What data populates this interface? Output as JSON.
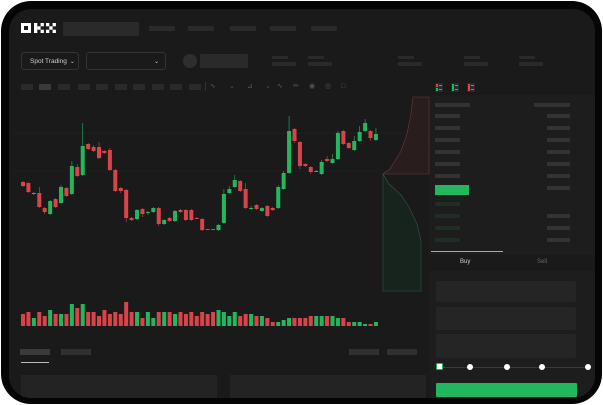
{
  "header": {
    "logo": "OKX"
  },
  "controls": {
    "market_select": "Spot Trading",
    "pair_select": ""
  },
  "trade": {
    "tabs": [
      "Buy",
      "Sell"
    ],
    "active_tab": "Buy",
    "slider_percent": 0,
    "button_color": "#22b65f"
  },
  "colors": {
    "up": "#22b65f",
    "down": "#d9444a",
    "background": "#1a1a1a"
  },
  "chart": {
    "candles": [
      [
        59,
        55,
        60,
        54
      ],
      [
        58,
        49,
        59,
        48
      ],
      [
        47,
        48,
        49,
        46
      ],
      [
        48,
        34,
        54,
        33
      ],
      [
        33,
        29,
        34,
        27
      ],
      [
        27,
        40,
        41,
        26
      ],
      [
        42,
        34,
        43,
        33
      ],
      [
        38,
        54,
        56,
        37
      ],
      [
        53,
        45,
        54,
        44
      ],
      [
        47,
        75,
        80,
        46
      ],
      [
        74,
        65,
        77,
        64
      ],
      [
        66,
        95,
        118,
        65
      ],
      [
        97,
        92,
        98,
        91
      ],
      [
        94,
        90,
        96,
        89
      ],
      [
        94,
        83,
        99,
        82
      ],
      [
        90,
        88,
        91,
        87
      ],
      [
        91,
        71,
        93,
        70
      ],
      [
        71,
        50,
        72,
        49
      ],
      [
        53,
        50,
        54,
        48
      ],
      [
        51,
        23,
        52,
        19
      ],
      [
        23,
        21,
        24,
        20
      ],
      [
        22,
        31,
        32,
        21
      ],
      [
        32,
        27,
        33,
        24
      ],
      [
        28,
        29,
        30,
        26
      ],
      [
        29,
        33,
        34,
        28
      ],
      [
        33,
        17,
        34,
        15
      ],
      [
        17,
        21,
        22,
        16
      ],
      [
        23,
        20,
        24,
        19
      ],
      [
        20,
        30,
        31,
        19
      ],
      [
        31,
        29,
        32,
        28
      ],
      [
        31,
        21,
        32,
        20
      ],
      [
        31,
        21,
        32,
        20
      ],
      [
        23,
        22,
        24,
        22
      ],
      [
        22,
        11,
        23,
        10
      ],
      [
        12,
        11,
        12,
        11
      ],
      [
        12,
        11,
        12,
        11
      ],
      [
        11,
        16,
        17,
        10
      ],
      [
        18,
        47,
        52,
        17
      ],
      [
        48,
        52,
        55,
        47
      ],
      [
        54,
        61,
        66,
        53
      ],
      [
        60,
        50,
        61,
        49
      ],
      [
        52,
        33,
        58,
        32
      ],
      [
        32,
        33,
        35,
        31
      ],
      [
        36,
        32,
        37,
        31
      ],
      [
        30,
        33,
        34,
        29
      ],
      [
        35,
        25,
        36,
        24
      ],
      [
        33,
        31,
        34,
        30
      ],
      [
        33,
        54,
        56,
        32
      ],
      [
        52,
        68,
        70,
        51
      ],
      [
        68,
        110,
        125,
        67
      ],
      [
        112,
        100,
        113,
        98
      ],
      [
        99,
        75,
        100,
        72
      ],
      [
        77,
        75,
        78,
        74
      ],
      [
        74,
        69,
        75,
        67
      ],
      [
        70,
        70,
        71,
        69
      ],
      [
        67,
        79,
        81,
        66
      ],
      [
        82,
        80,
        85,
        79
      ],
      [
        78,
        82,
        87,
        77
      ],
      [
        82,
        108,
        110,
        81
      ],
      [
        110,
        97,
        111,
        96
      ],
      [
        98,
        93,
        99,
        92
      ],
      [
        91,
        100,
        105,
        90
      ],
      [
        100,
        109,
        115,
        99
      ],
      [
        110,
        118,
        122,
        109
      ],
      [
        110,
        103,
        111,
        100
      ],
      [
        101,
        107,
        113,
        100
      ]
    ],
    "volumes": [
      6,
      7,
      4,
      7,
      5,
      8,
      6,
      6,
      6,
      11,
      9,
      11,
      7,
      7,
      5,
      8,
      6,
      7,
      6,
      12,
      7,
      7,
      4,
      7,
      4,
      7,
      7,
      7,
      6,
      7,
      6,
      7,
      5,
      7,
      6,
      7,
      8,
      7,
      5,
      7,
      5,
      6,
      6,
      5,
      5,
      4,
      2,
      2,
      3,
      4,
      4,
      4,
      4,
      5,
      5,
      5,
      5,
      5,
      4,
      4,
      2,
      2,
      2,
      1,
      1,
      2
    ]
  }
}
